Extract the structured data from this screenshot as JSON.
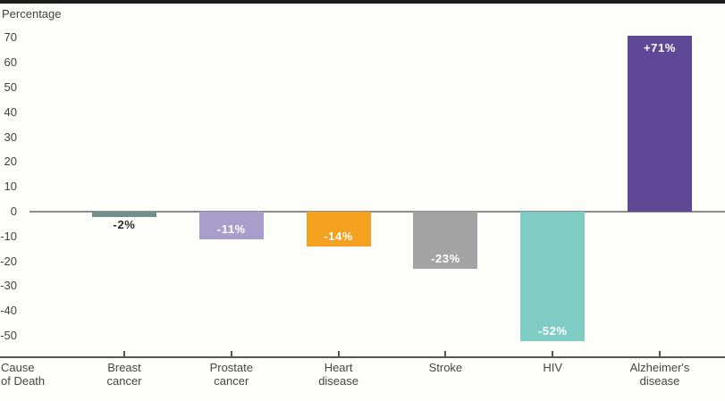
{
  "frame": {
    "top_bar_color": "#1b1b1b",
    "background": "#fdfdfa"
  },
  "chart_data": {
    "type": "bar",
    "title": "",
    "ylabel": "Percentage",
    "xlabel": "Cause\nof Death",
    "categories": [
      "Breast\ncancer",
      "Prostate\ncancer",
      "Heart\ndisease",
      "Stroke",
      "HIV",
      "Alzheimer's\ndisease"
    ],
    "values": [
      -2,
      -11,
      -14,
      -23,
      -52,
      71
    ],
    "value_labels": [
      "-2%",
      "-11%",
      "-14%",
      "-23%",
      "-52%",
      "+71%"
    ],
    "bar_colors": [
      "#6f908b",
      "#a99ecb",
      "#f3a11f",
      "#a3a3a3",
      "#7fccc5",
      "#5f4896"
    ],
    "value_label_styles": [
      {
        "position": "below",
        "color": "#2b2b2b"
      },
      {
        "position": "inside-bottom",
        "color": "#ffffff"
      },
      {
        "position": "inside-bottom",
        "color": "#ffffff"
      },
      {
        "position": "inside-bottom",
        "color": "#ffffff"
      },
      {
        "position": "inside-bottom",
        "color": "#ffffff"
      },
      {
        "position": "inside-top",
        "color": "#ffffff"
      }
    ],
    "yticks": [
      70,
      60,
      50,
      40,
      30,
      20,
      10,
      0,
      -10,
      -20,
      -30,
      -40,
      -50
    ],
    "ylim": [
      -57,
      76
    ],
    "grid": "zero-line-only",
    "legend": "none",
    "axis_colors": {
      "zero_line": "#8c8c8c",
      "x_axis": "#555555",
      "text": "#3f3f3f"
    }
  }
}
